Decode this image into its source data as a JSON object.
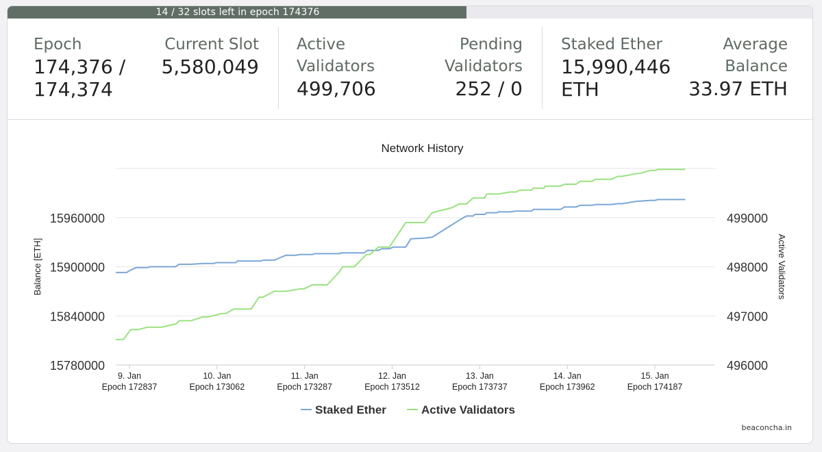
{
  "progress": {
    "text": "14 / 32 slots left in epoch 174376",
    "fraction": 0.57
  },
  "stats": {
    "epoch": {
      "label": "Epoch",
      "value_line1": "174,376 /",
      "value_line2": "174,374"
    },
    "current_slot": {
      "label": "Current Slot",
      "value": "5,580,049"
    },
    "active_validators": {
      "label_line1": "Active",
      "label_line2": "Validators",
      "value": "499,706"
    },
    "pending_validators": {
      "label_line1": "Pending",
      "label_line2": "Validators",
      "value": "252 / 0"
    },
    "staked_ether": {
      "label": "Staked Ether",
      "value_line1": "15,990,446",
      "value_line2": "ETH"
    },
    "average_balance": {
      "label_line1": "Average",
      "label_line2": "Balance",
      "value": "33.97 ETH"
    }
  },
  "credit": "beaconcha.in",
  "colors": {
    "staked": "#7ba6d6",
    "active": "#98e27f",
    "progress": "#616e66"
  },
  "chart_data": {
    "type": "line",
    "title": "Network History",
    "ylabel": "Balance [ETH]",
    "ylabel_right": "Active Validators",
    "x_ticks": [
      {
        "day": "9. Jan",
        "epoch": "Epoch 172837"
      },
      {
        "day": "10. Jan",
        "epoch": "Epoch 173062"
      },
      {
        "day": "11. Jan",
        "epoch": "Epoch 173287"
      },
      {
        "day": "12. Jan",
        "epoch": "Epoch 173512"
      },
      {
        "day": "13. Jan",
        "epoch": "Epoch 173737"
      },
      {
        "day": "14. Jan",
        "epoch": "Epoch 173962"
      },
      {
        "day": "15. Jan",
        "epoch": "Epoch 174187"
      }
    ],
    "x_range": [
      172837,
      174377
    ],
    "y_left": {
      "ticks": [
        15780000,
        15840000,
        15900000,
        15960000
      ],
      "lim": [
        15780000,
        16020000
      ]
    },
    "y_right": {
      "ticks": [
        496000,
        497000,
        498000,
        499000
      ],
      "lim": [
        496000,
        500000
      ]
    },
    "legend": [
      "Staked Ether",
      "Active Validators"
    ],
    "legend_position": "bottom",
    "series": [
      {
        "name": "Staked Ether",
        "axis": "left",
        "x": [
          172837,
          172865,
          172875,
          172890,
          172918,
          172925,
          172955,
          172990,
          173000,
          173030,
          173062,
          173090,
          173095,
          173120,
          173145,
          173150,
          173180,
          173210,
          173215,
          173244,
          173254,
          173274,
          173300,
          173310,
          173342,
          173349,
          173380,
          173412,
          173417,
          173450,
          173475,
          173484,
          173512,
          173520,
          173540,
          173550,
          173582,
          173595,
          173630,
          173650,
          173700,
          173720,
          173738,
          173755,
          173760,
          173785,
          173790,
          173817,
          173820,
          173850,
          173865,
          173875,
          173905,
          173910,
          173937,
          173940,
          173980,
          173990,
          174020,
          174030,
          174060,
          174070,
          174110,
          174128,
          174138,
          174178,
          174184,
          174210,
          174222,
          174230,
          174300
        ],
        "y": [
          15893000,
          15893000,
          15896000,
          15899000,
          15899000,
          15900000,
          15900000,
          15900000,
          15903000,
          15903000,
          15904000,
          15904000,
          15905000,
          15905000,
          15905000,
          15907000,
          15907000,
          15907000,
          15908000,
          15908000,
          15910000,
          15914000,
          15914000,
          15915000,
          15915000,
          15916000,
          15916000,
          15916000,
          15917000,
          15917000,
          15917000,
          15920000,
          15920000,
          15922000,
          15922000,
          15924000,
          15924000,
          15934000,
          15935000,
          15936000,
          15951000,
          15957000,
          15962000,
          15962000,
          15964000,
          15964000,
          15966000,
          15966000,
          15967000,
          15967000,
          15968000,
          15968000,
          15968000,
          15970000,
          15970000,
          15970000,
          15970000,
          15973000,
          15973000,
          15975000,
          15975000,
          15976000,
          15976000,
          15977000,
          15977000,
          15980000,
          15980000,
          15981000,
          15981000,
          15982000,
          15982000
        ]
      },
      {
        "name": "Active Validators",
        "axis": "right",
        "x": [
          172837,
          172857,
          172875,
          172895,
          172918,
          172925,
          172955,
          172993,
          173000,
          173030,
          173060,
          173075,
          173110,
          173120,
          173140,
          173170,
          173185,
          173205,
          173215,
          173244,
          173254,
          173274,
          173310,
          173320,
          173342,
          173349,
          173380,
          173412,
          173420,
          173450,
          173481,
          173490,
          173512,
          173530,
          173540,
          173582,
          173595,
          173630,
          173650,
          173700,
          173720,
          173738,
          173755,
          173760,
          173785,
          173790,
          173817,
          173820,
          173850,
          173865,
          173875,
          173905,
          173910,
          173937,
          173940,
          173980,
          173990,
          174020,
          174030,
          174060,
          174070,
          174110,
          174128,
          174138,
          174178,
          174184,
          174210,
          174222,
          174230,
          174300
        ],
        "y": [
          496520,
          496520,
          496720,
          496720,
          496770,
          496770,
          496770,
          496840,
          496900,
          496900,
          496980,
          496980,
          497050,
          497050,
          497140,
          497140,
          497140,
          497380,
          497380,
          497500,
          497500,
          497500,
          497550,
          497550,
          497630,
          497630,
          497630,
          497900,
          498000,
          498000,
          498250,
          498250,
          498400,
          498400,
          498400,
          498900,
          498900,
          498900,
          499100,
          499200,
          499280,
          499280,
          499400,
          499400,
          499400,
          499480,
          499480,
          499480,
          499520,
          499520,
          499560,
          499560,
          499600,
          499600,
          499640,
          499640,
          499680,
          499680,
          499740,
          499740,
          499780,
          499780,
          499840,
          499840,
          499900,
          499900,
          499960,
          499960,
          499980,
          499980
        ]
      }
    ]
  }
}
